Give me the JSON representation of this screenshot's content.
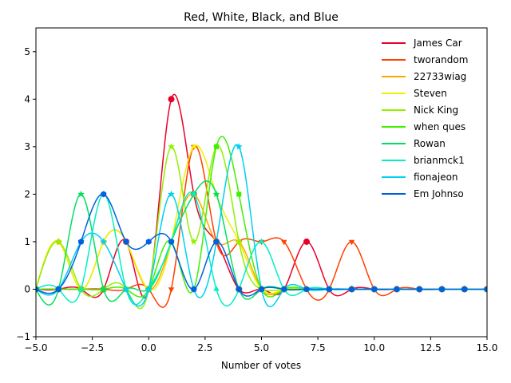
{
  "chart_data": {
    "type": "line",
    "title": "Red, White, Black, and Blue",
    "xlabel": "Number of votes",
    "ylabel": "",
    "xlim": [
      -5,
      15
    ],
    "ylim": [
      -1,
      5.5
    ],
    "xticks": [
      -5,
      -2.5,
      0,
      2.5,
      5,
      7.5,
      10,
      12.5,
      15
    ],
    "xtick_labels": [
      "−5.0",
      "−2.5",
      "0.0",
      "2.5",
      "5.0",
      "7.5",
      "10.0",
      "12.5",
      "15.0"
    ],
    "yticks": [
      -1,
      0,
      1,
      2,
      3,
      4,
      5
    ],
    "ytick_labels": [
      "−1",
      "0",
      "1",
      "2",
      "3",
      "4",
      "5"
    ],
    "legend_position": "top-right",
    "grid": false,
    "series": [
      {
        "name": "James Car",
        "color": "#e8002a",
        "marker": "circle",
        "x": [
          -5,
          -4,
          -3,
          -2,
          -1,
          0,
          1,
          2,
          3,
          4,
          5,
          6,
          7,
          8,
          9,
          10,
          11,
          12,
          13,
          14,
          15
        ],
        "y": [
          0,
          0,
          0,
          0,
          1,
          0,
          4,
          2,
          1,
          0,
          0,
          0,
          1,
          0,
          0,
          0,
          0,
          0,
          0,
          0,
          0
        ]
      },
      {
        "name": "tworandom",
        "color": "#ff4000",
        "marker": "triangle-down",
        "x": [
          -5,
          -4,
          -3,
          -2,
          -1,
          0,
          1,
          2,
          3,
          4,
          5,
          6,
          7,
          8,
          9,
          10,
          11,
          12,
          13,
          14,
          15
        ],
        "y": [
          0,
          0,
          0,
          0,
          0,
          0,
          0,
          3,
          1,
          1,
          1,
          1,
          0,
          0,
          1,
          0,
          0,
          0,
          0,
          0,
          0
        ]
      },
      {
        "name": "22733wiag",
        "color": "#ffa500",
        "marker": "diamond",
        "x": [
          -5,
          -4,
          -3,
          -2,
          -1,
          0,
          1,
          2,
          3,
          4,
          5,
          6,
          7,
          8,
          9,
          10,
          11,
          12,
          13,
          14,
          15
        ],
        "y": [
          0,
          1,
          0,
          1,
          1,
          0,
          1,
          2,
          1,
          1,
          0,
          0,
          0,
          0,
          0,
          0,
          0,
          0,
          0,
          0,
          0
        ]
      },
      {
        "name": "Steven",
        "color": "#f0f000",
        "marker": "triangle-up",
        "x": [
          -5,
          -4,
          -3,
          -2,
          -1,
          0,
          1,
          2,
          3,
          4,
          5,
          6,
          7,
          8,
          9,
          10,
          11,
          12,
          13,
          14,
          15
        ],
        "y": [
          0,
          1,
          0,
          1,
          1,
          0,
          1,
          3,
          2,
          1,
          0,
          0,
          0,
          0,
          0,
          0,
          0,
          0,
          0,
          0,
          0
        ]
      },
      {
        "name": "Nick King",
        "color": "#90f000",
        "marker": "star",
        "x": [
          -5,
          -4,
          -3,
          -2,
          -1,
          0,
          1,
          2,
          3,
          4,
          5,
          6,
          7,
          8,
          9,
          10,
          11,
          12,
          13,
          14,
          15
        ],
        "y": [
          0,
          1,
          0,
          0,
          0,
          0,
          3,
          1,
          3,
          1,
          0,
          0,
          0,
          0,
          0,
          0,
          0,
          0,
          0,
          0,
          0
        ]
      },
      {
        "name": "when ques",
        "color": "#40f000",
        "marker": "square",
        "x": [
          -5,
          -4,
          -3,
          -2,
          -1,
          0,
          1,
          2,
          3,
          4,
          5,
          6,
          7,
          8,
          9,
          10,
          11,
          12,
          13,
          14,
          15
        ],
        "y": [
          0,
          0,
          0,
          0,
          0,
          0,
          1,
          0,
          3,
          2,
          0,
          0,
          0,
          0,
          0,
          0,
          0,
          0,
          0,
          0,
          0
        ]
      },
      {
        "name": "Rowan",
        "color": "#00e060",
        "marker": "star",
        "x": [
          -5,
          -4,
          -3,
          -2,
          -1,
          0,
          1,
          2,
          3,
          4,
          5,
          6,
          7,
          8,
          9,
          10,
          11,
          12,
          13,
          14,
          15
        ],
        "y": [
          0,
          0,
          2,
          0,
          0,
          0,
          1,
          2,
          2,
          0,
          0,
          0,
          0,
          0,
          0,
          0,
          0,
          0,
          0,
          0,
          0
        ]
      },
      {
        "name": "brianmck1",
        "color": "#00f0c0",
        "marker": "triangle-up",
        "x": [
          -5,
          -4,
          -3,
          -2,
          -1,
          0,
          1,
          2,
          3,
          4,
          5,
          6,
          7,
          8,
          9,
          10,
          11,
          12,
          13,
          14,
          15
        ],
        "y": [
          0,
          0,
          0,
          2,
          0,
          0,
          1,
          2,
          0,
          0,
          1,
          0,
          0,
          0,
          0,
          0,
          0,
          0,
          0,
          0,
          0
        ]
      },
      {
        "name": "fionajeon",
        "color": "#00d0f0",
        "marker": "star",
        "x": [
          -5,
          -4,
          -3,
          -2,
          -1,
          0,
          1,
          2,
          3,
          4,
          5,
          6,
          7,
          8,
          9,
          10,
          11,
          12,
          13,
          14,
          15
        ],
        "y": [
          0,
          0,
          1,
          1,
          0,
          0,
          2,
          0,
          1,
          3,
          0,
          0,
          0,
          0,
          0,
          0,
          0,
          0,
          0,
          0,
          0
        ]
      },
      {
        "name": "Em Johnso",
        "color": "#0060e0",
        "marker": "hexagon",
        "x": [
          -5,
          -4,
          -3,
          -2,
          -1,
          0,
          1,
          2,
          3,
          4,
          5,
          6,
          7,
          8,
          9,
          10,
          11,
          12,
          13,
          14,
          15
        ],
        "y": [
          0,
          0,
          1,
          2,
          1,
          1,
          1,
          0,
          1,
          0,
          0,
          0,
          0,
          0,
          0,
          0,
          0,
          0,
          0,
          0,
          0
        ]
      }
    ]
  }
}
